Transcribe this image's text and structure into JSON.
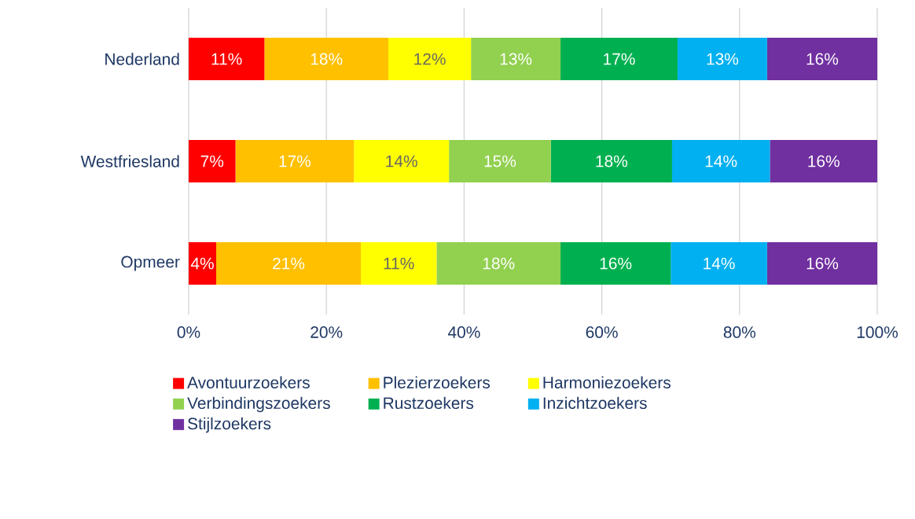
{
  "chart_data": {
    "type": "bar",
    "orientation": "horizontal",
    "stacked": true,
    "categories": [
      "Nederland",
      "Westfriesland",
      "Opmeer"
    ],
    "series": [
      {
        "name": "Avontuurzoekers",
        "color": "#ff0000",
        "values": [
          11,
          6.8,
          4
        ],
        "value_labels": [
          "11%",
          "7%",
          "4%"
        ]
      },
      {
        "name": "Plezierzoekers",
        "color": "#ffc000",
        "values": [
          18,
          17.2,
          21
        ],
        "value_labels": [
          "18%",
          "17%",
          "21%"
        ]
      },
      {
        "name": "Harmoniezoekers",
        "color": "#ffff00",
        "values": [
          12,
          13.8,
          11
        ],
        "value_labels": [
          "12%",
          "14%",
          "11%"
        ]
      },
      {
        "name": "Verbindingszoekers",
        "color": "#92d050",
        "values": [
          13,
          14.8,
          18
        ],
        "value_labels": [
          "13%",
          "15%",
          "18%"
        ]
      },
      {
        "name": "Rustzoekers",
        "color": "#00b050",
        "values": [
          17,
          17.6,
          16
        ],
        "value_labels": [
          "17%",
          "18%",
          "16%"
        ]
      },
      {
        "name": "Inzichtzoekers",
        "color": "#00b0f0",
        "values": [
          13,
          14.2,
          14
        ],
        "value_labels": [
          "13%",
          "14%",
          "14%"
        ]
      },
      {
        "name": "Stijlzoekers",
        "color": "#7030a0",
        "values": [
          16,
          15.6,
          16
        ],
        "value_labels": [
          "16%",
          "16%",
          "16%"
        ]
      }
    ],
    "xlim": [
      0,
      100
    ],
    "xticks": [
      {
        "value": 0,
        "label": "0%"
      },
      {
        "value": 20,
        "label": "20%"
      },
      {
        "value": 40,
        "label": "40%"
      },
      {
        "value": 60,
        "label": "60%"
      },
      {
        "value": 80,
        "label": "80%"
      },
      {
        "value": 100,
        "label": "100%"
      }
    ],
    "grid": "x",
    "legend": "bottom"
  }
}
